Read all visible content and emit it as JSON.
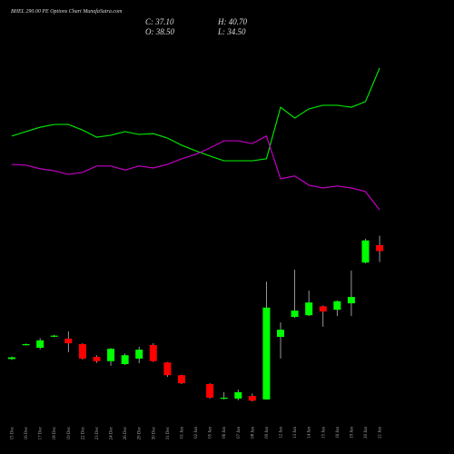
{
  "chart_data": {
    "type": "candlestick",
    "title": "BHEL 290.00 PE Options Chart MunafaSutra.com",
    "ohlc_labels": {
      "close": "C: 37.10",
      "high": "H: 40.70",
      "open": "O: 38.50",
      "low": "L: 34.50"
    },
    "categories": [
      "15 Dec",
      "16 Dec",
      "17 Dec",
      "18 Dec",
      "19 Dec",
      "22 Dec",
      "23 Dec",
      "24 Dec",
      "26 Dec",
      "29 Dec",
      "30 Dec",
      "31 Dec",
      "01 Jan",
      "02 Jan",
      "05 Jan",
      "06 Jan",
      "07 Jan",
      "08 Jan",
      "09 Jan",
      "12 Jan",
      "13 Jan",
      "14 Jan",
      "15 Jan",
      "16 Jan",
      "19 Jan",
      "20 Jan",
      "21 Jan"
    ],
    "open": [
      11.7,
      15.0,
      14.35,
      17.0,
      16.5,
      15.2,
      12.2,
      11.2,
      10.5,
      11.8,
      15.0,
      10.9,
      7.9,
      null,
      5.8,
      2.4,
      2.4,
      3.0,
      2.2,
      16.9,
      21.6,
      22.0,
      24.1,
      23.3,
      24.8,
      34.4,
      38.5
    ],
    "high": [
      12.3,
      15.3,
      16.6,
      17.4,
      18.2,
      15.4,
      12.6,
      14.3,
      13.0,
      14.6,
      15.4,
      11.0,
      8.0,
      null,
      6.0,
      3.9,
      4.5,
      3.6,
      29.9,
      20.3,
      32.7,
      27.8,
      24.3,
      25.5,
      32.5,
      40.0,
      40.7
    ],
    "low": [
      11.5,
      14.9,
      14.0,
      16.8,
      13.3,
      11.6,
      10.8,
      10.1,
      10.3,
      10.7,
      11.0,
      7.5,
      5.8,
      null,
      2.4,
      2.2,
      2.0,
      1.7,
      2.2,
      11.8,
      21.4,
      21.8,
      19.3,
      21.8,
      21.8,
      34.2,
      34.5
    ],
    "close": [
      12.1,
      15.2,
      16.1,
      17.2,
      15.4,
      11.8,
      11.2,
      14.1,
      12.6,
      13.9,
      11.2,
      7.9,
      6.0,
      null,
      2.6,
      2.6,
      3.9,
      1.9,
      23.8,
      18.6,
      23.1,
      25.0,
      22.9,
      25.3,
      26.3,
      39.6,
      37.1
    ],
    "ylim": [
      -2.1,
      91.9
    ],
    "up_color": "#00ff00",
    "down_color": "#ff0000",
    "y2lim": [
      0,
      100
    ],
    "series": [
      {
        "color": "#00e000",
        "axis": "y2",
        "values": [
          70.5,
          71.6,
          72.7,
          73.4,
          73.4,
          72.0,
          70.2,
          70.7,
          71.6,
          70.9,
          71.1,
          70.0,
          68.2,
          66.8,
          65.5,
          64.3,
          64.3,
          64.3,
          64.8,
          77.7,
          75.0,
          77.3,
          78.2,
          78.2,
          77.7,
          79.1,
          87.5
        ]
      },
      {
        "color": "#c000c0",
        "axis": "y2",
        "values": [
          63.4,
          63.2,
          62.3,
          61.8,
          60.9,
          61.4,
          63.0,
          63.0,
          62.0,
          63.0,
          62.5,
          63.4,
          64.8,
          65.9,
          67.5,
          69.3,
          69.3,
          68.6,
          70.5,
          59.8,
          60.5,
          58.2,
          57.5,
          58.0,
          57.5,
          56.6,
          52.0
        ]
      }
    ]
  }
}
